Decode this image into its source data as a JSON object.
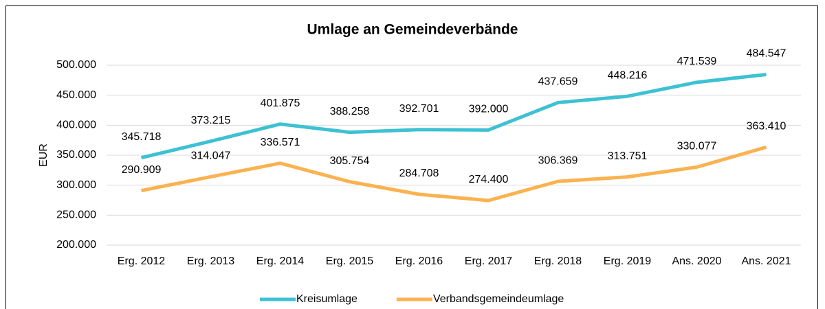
{
  "chart_data": {
    "type": "line",
    "title": "Umlage an Gemeindeverbände",
    "y_label": "EUR",
    "categories": [
      "Erg. 2012",
      "Erg. 2013",
      "Erg. 2014",
      "Erg. 2015",
      "Erg. 2016",
      "Erg. 2017",
      "Erg. 2018",
      "Erg. 2019",
      "Ans. 2020",
      "Ans. 2021"
    ],
    "series": [
      {
        "name": "Kreisumlage",
        "color": "#3dc1d3",
        "values": [
          345718,
          373215,
          401875,
          388258,
          392701,
          392000,
          437659,
          448216,
          471539,
          484547
        ],
        "value_labels": [
          "345.718",
          "373.215",
          "401.875",
          "388.258",
          "392.701",
          "392.000",
          "437.659",
          "448.216",
          "471.539",
          "484.547"
        ]
      },
      {
        "name": "Verbandsgemeindeumlage",
        "color": "#fbb24f",
        "values": [
          290909,
          314047,
          336571,
          305754,
          284708,
          274400,
          306369,
          313751,
          330077,
          363410
        ],
        "value_labels": [
          "290.909",
          "314.047",
          "336.571",
          "305.754",
          "284.708",
          "274.400",
          "306.369",
          "313.751",
          "330.077",
          "363.410"
        ]
      }
    ],
    "ylim": [
      200000,
      500000
    ],
    "yticks": [
      {
        "value": 200000,
        "label": "200.000"
      },
      {
        "value": 250000,
        "label": "250.000"
      },
      {
        "value": 300000,
        "label": "300.000"
      },
      {
        "value": 350000,
        "label": "350.000"
      },
      {
        "value": 400000,
        "label": "400.000"
      },
      {
        "value": 450000,
        "label": "450.000"
      },
      {
        "value": 500000,
        "label": "500.000"
      }
    ],
    "grid": true,
    "legend": "bottom"
  }
}
